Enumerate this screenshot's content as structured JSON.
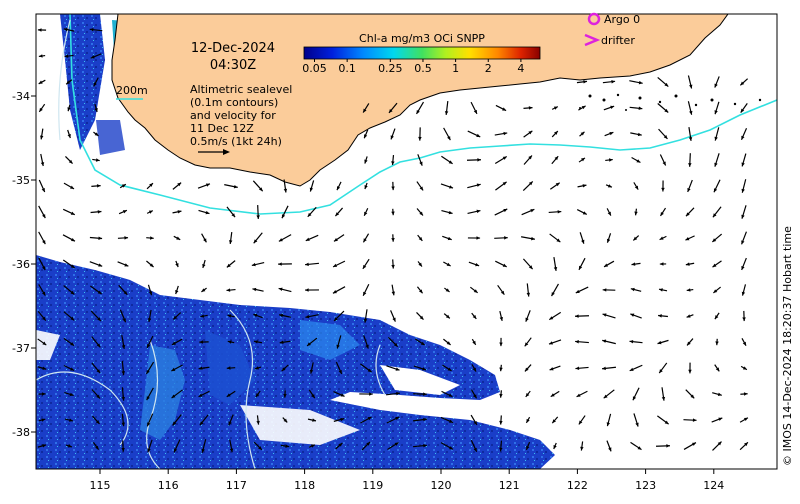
{
  "map": {
    "date": "12-Dec-2024",
    "time": "04:30Z",
    "colorbar_title": "Chl-a mg/m3 OCi SNPP",
    "colorbar_ticks": [
      "0.05",
      "0.1",
      "0.25",
      "0.5",
      "1",
      "2",
      "4"
    ],
    "colorbar_values": [
      0.05,
      0.1,
      0.25,
      0.5,
      1,
      2,
      4
    ],
    "legend_argo": "Argo 0",
    "legend_drifter": "drifter",
    "bathy_label": "200m",
    "notes": [
      "Altimetric sealevel",
      "(0.1m contours)",
      "and velocity for",
      "11 Dec 12Z",
      "0.5m/s (1kt 24h)"
    ],
    "credit": "© IMOS 14-Dec-2024 18:20:37 Hobart time",
    "lon_ticks": [
      "115",
      "116",
      "117",
      "118",
      "119",
      "120",
      "121",
      "122",
      "123",
      "124"
    ],
    "lat_ticks": [
      "-34",
      "-35",
      "-36",
      "-37",
      "-38"
    ],
    "colors": {
      "land": "#fbcc9a",
      "bathy": "#33e0e0",
      "ocean": "#ffffff",
      "argo": "#dd22dd",
      "drifter": "#dd22dd"
    }
  }
}
